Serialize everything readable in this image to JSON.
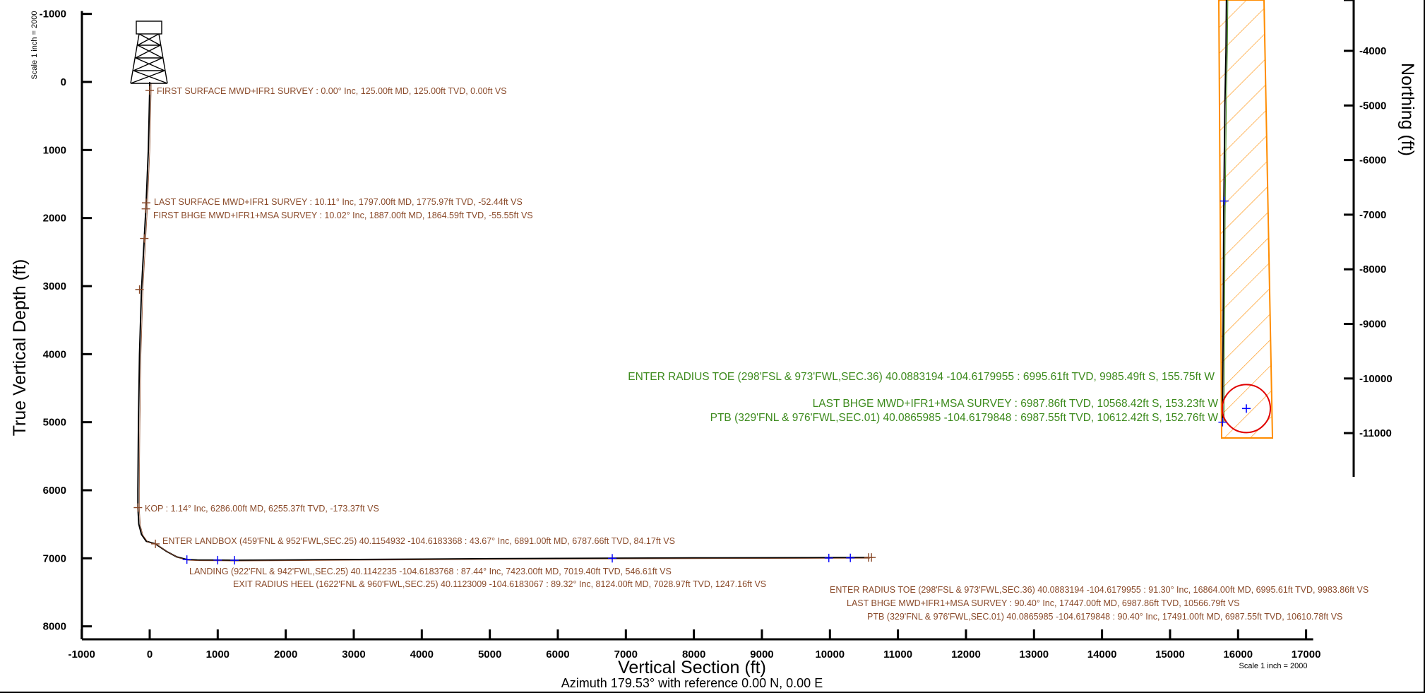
{
  "colors": {
    "annotation_brown": "#8a4a2a",
    "annotation_green": "#3c8a1c",
    "lease_orange": "#ff8c00",
    "target_red": "#e00000",
    "survey_blue": "#0000ff",
    "wellpath": "#000000"
  },
  "icons": {
    "rig": "drilling-rig-icon"
  },
  "chart_data": [
    {
      "type": "line",
      "title": "",
      "xlabel": "Vertical Section (ft)",
      "ylabel": "True Vertical Depth (ft)",
      "subtitle": "Azimuth 179.53° with reference 0.00 N, 0.00 E",
      "scale_note_left": "Scale 1 inch = 2000",
      "scale_note_bottom": "Scale 1 inch = 2000",
      "xlim": [
        -1000,
        17000
      ],
      "ylim": [
        -1000,
        8000
      ],
      "y_inverted": true,
      "x_ticks": [
        "-1000",
        "0",
        "1000",
        "2000",
        "3000",
        "4000",
        "5000",
        "6000",
        "7000",
        "8000",
        "9000",
        "10000",
        "11000",
        "12000",
        "13000",
        "14000",
        "15000",
        "16000",
        "17000"
      ],
      "y_ticks": [
        "-1000",
        "0",
        "1000",
        "2000",
        "3000",
        "4000",
        "5000",
        "6000",
        "7000",
        "8000"
      ],
      "series": [
        {
          "x": [
            0,
            0,
            -20,
            -52,
            -56,
            -80,
            -120,
            -150,
            -165,
            -173,
            -173,
            -160,
            -120,
            -50,
            84,
            250,
            400,
            547,
            700,
            1000,
            1247,
            2000,
            3000,
            4000,
            5000,
            6000,
            7000,
            8000,
            9000,
            10000,
            10567
          ],
          "y": [
            0,
            125,
            1000,
            1776,
            1865,
            2300,
            3050,
            4000,
            5000,
            6000,
            6255,
            6500,
            6650,
            6750,
            6788,
            6900,
            6980,
            7019,
            7025,
            7027,
            7029,
            7025,
            7018,
            7012,
            7006,
            7002,
            6998,
            6995,
            6993,
            6991,
            6988
          ]
        }
      ],
      "survey_markers": [
        {
          "x": 0,
          "y": 125
        },
        {
          "x": -52,
          "y": 1776
        },
        {
          "x": -56,
          "y": 1865
        },
        {
          "x": -80,
          "y": 2300
        },
        {
          "x": -150,
          "y": 3050
        },
        {
          "x": -173,
          "y": 6255
        },
        {
          "x": 84,
          "y": 6788
        },
        {
          "x": 547,
          "y": 7019
        },
        {
          "x": 1000,
          "y": 7027
        },
        {
          "x": 1247,
          "y": 7029
        },
        {
          "x": 6800,
          "y": 7000
        },
        {
          "x": 9984,
          "y": 6996
        },
        {
          "x": 10300,
          "y": 6994
        },
        {
          "x": 10567,
          "y": 6988
        },
        {
          "x": 10611,
          "y": 6988
        }
      ],
      "annotations": [
        "FIRST SURFACE MWD+IFR1 SURVEY : 0.00° Inc, 125.00ft MD, 125.00ft TVD, 0.00ft VS",
        "LAST SURFACE MWD+IFR1 SURVEY : 10.11° Inc, 1797.00ft MD, 1775.97ft TVD, -52.44ft VS",
        "FIRST BHGE MWD+IFR1+MSA SURVEY : 10.02° Inc, 1887.00ft MD, 1864.59ft TVD, -55.55ft VS",
        "KOP : 1.14° Inc, 6286.00ft MD, 6255.37ft TVD, -173.37ft VS",
        "ENTER LANDBOX (459'FNL & 952'FWL,SEC.25) 40.1154932 -104.6183368 : 43.67° Inc, 6891.00ft MD, 6787.66ft TVD, 84.17ft VS",
        "LANDING (922'FNL & 942'FWL,SEC.25) 40.1142235 -104.6183768 : 87.44° Inc, 7423.00ft MD, 7019.40ft TVD, 546.61ft VS",
        "EXIT RADIUS HEEL (1622'FNL & 960'FWL,SEC.25) 40.1123009 -104.6183067 : 89.32° Inc, 8124.00ft MD, 7028.97ft TVD, 1247.16ft VS",
        "ENTER RADIUS TOE (298'FSL & 973'FWL,SEC.36) 40.0883194 -104.6179955 : 91.30° Inc, 16864.00ft MD, 6995.61ft TVD, 9983.86ft VS",
        "LAST BHGE MWD+IFR1+MSA SURVEY : 90.40° Inc, 17447.00ft MD, 6987.86ft TVD, 10566.79ft VS",
        "PTB (329'FNL & 976'FWL,SEC.01) 40.0865985 -104.6179848 : 90.40° Inc, 17491.00ft MD, 6987.55ft TVD, 10610.78ft VS"
      ]
    },
    {
      "type": "line",
      "title": "",
      "xlabel": "",
      "ylabel": "Northing (ft)",
      "ylim": [
        -11800,
        -3000
      ],
      "y_ticks": [
        "-4000",
        "-5000",
        "-6000",
        "-7000",
        "-8000",
        "-9000",
        "-10000",
        "-11000"
      ],
      "target_circle_center_northing": -10550,
      "series": [
        {
          "easting": [
            0,
            -2,
            -6,
            -8,
            -10,
            -12,
            -14,
            -14
          ],
          "northing": [
            -2800,
            -4000,
            -5000,
            -6000,
            -7000,
            -9000,
            -10400,
            -10800
          ]
        }
      ],
      "survey_markers": [
        {
          "easting": -8,
          "northing": -6750
        },
        {
          "easting": -14,
          "northing": -10800
        }
      ],
      "annotations": [
        "ENTER RADIUS TOE (298'FSL & 973'FWL,SEC.36) 40.0883194 -104.6179955 : 6995.61ft TVD, 9985.49ft S, 155.75ft W",
        "LAST BHGE MWD+IFR1+MSA SURVEY : 6987.86ft TVD, 10568.42ft S, 153.23ft W",
        "PTB (329'FNL & 976'FWL,SEC.01) 40.0865985 -104.6179848 : 6987.55ft TVD, 10612.42ft S, 152.76ft W"
      ]
    }
  ]
}
